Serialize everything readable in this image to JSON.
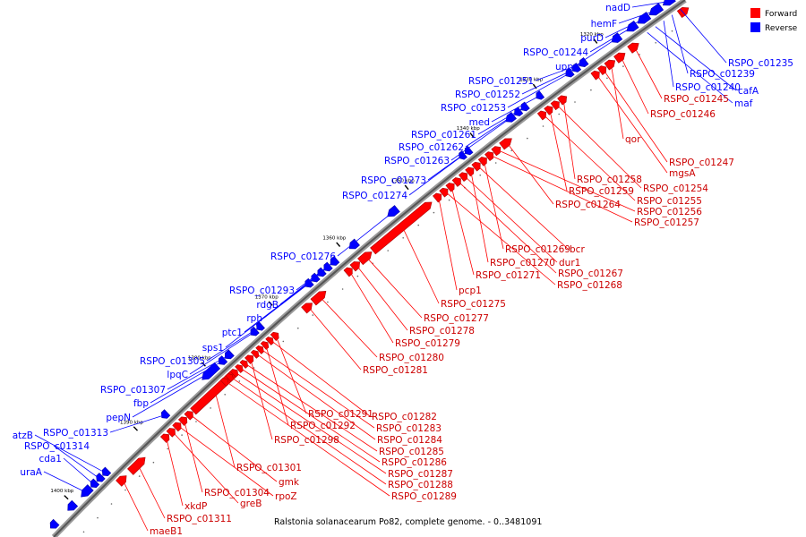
{
  "legend": [
    {
      "label": "Forward",
      "color": "#ff0000"
    },
    {
      "label": "Reverse",
      "color": "#0000ff"
    }
  ],
  "caption": "Ralstonia solanacearum Po82, complete genome. - 0..3481091",
  "ticks": [
    "1320 kbp",
    "1330 kbp",
    "1340 kbp",
    "1350 kbp",
    "1360 kbp",
    "1370 kbp",
    "1380 kbp",
    "1390 kbp",
    "1400 kbp"
  ],
  "reverse_labels": [
    "nadD",
    "hemF",
    "purD",
    "RSPO_c01244",
    "upp",
    "RSPO_c01251",
    "RSPO_c01252",
    "RSPO_c01253",
    "med",
    "RSPO_c01261",
    "RSPO_c01262",
    "RSPO_c01263",
    "RSPO_c01273",
    "RSPO_c01274",
    "RSPO_c01276",
    "RSPO_c01293",
    "rdgB",
    "rph",
    "ptc1",
    "sps1",
    "RSPO_c01305",
    "lpqC",
    "RSPO_c01307",
    "fbp",
    "pepN",
    "RSPO_c01313",
    "atzB",
    "RSPO_c01314",
    "cda1",
    "uraA",
    "RSPO_c01235",
    "RSPO_c01239",
    "RSPO_c01240",
    "cafA",
    "maf"
  ],
  "forward_labels": [
    "RSPO_c01245",
    "RSPO_c01246",
    "qor",
    "RSPO_c01247",
    "mgsA",
    "RSPO_c01258",
    "RSPO_c01254",
    "RSPO_c01259",
    "RSPO_c01255",
    "RSPO_c01264",
    "RSPO_c01256",
    "RSPO_c01257",
    "RSPO_c01269",
    "bcr",
    "RSPO_c01270",
    "dur1",
    "RSPO_c01267",
    "RSPO_c01271",
    "RSPO_c01268",
    "pcp1",
    "RSPO_c01275",
    "RSPO_c01277",
    "RSPO_c01278",
    "RSPO_c01279",
    "RSPO_c01280",
    "RSPO_c01281",
    "RSPO_c01291",
    "RSPO_c01282",
    "RSPO_c01292",
    "RSPO_c01283",
    "RSPO_c01284",
    "RSPO_c01298",
    "RSPO_c01285",
    "RSPO_c01286",
    "RSPO_c01301",
    "RSPO_c01287",
    "gmk",
    "RSPO_c01288",
    "RSPO_c01304",
    "rpoZ",
    "RSPO_c01289",
    "greB",
    "xkdP",
    "RSPO_c01311",
    "maeB1"
  ]
}
